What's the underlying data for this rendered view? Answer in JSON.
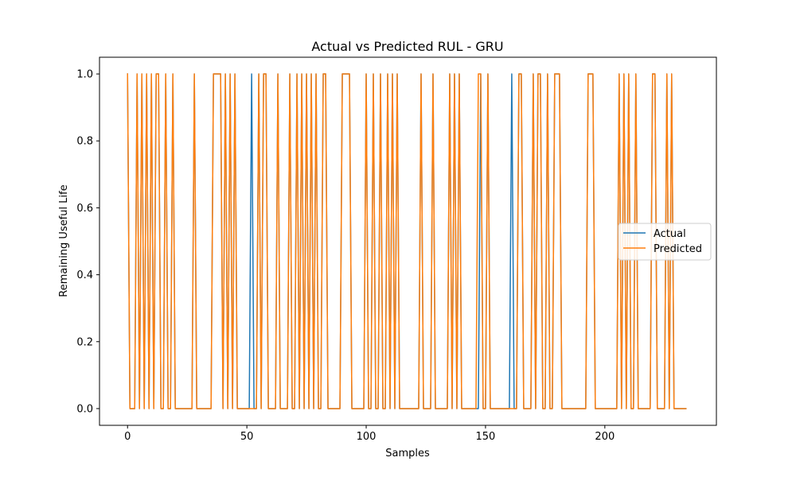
{
  "chart_data": {
    "type": "line",
    "title": "Actual vs Predicted RUL - GRU",
    "xlabel": "Samples",
    "ylabel": "Remaining Useful Life",
    "xlim": [
      -11.75,
      246.75
    ],
    "ylim": [
      -0.05,
      1.05
    ],
    "xticks": [
      0,
      50,
      100,
      150,
      200
    ],
    "yticks": [
      0.0,
      0.2,
      0.4,
      0.6,
      0.8,
      1.0
    ],
    "xtick_labels": [
      "0",
      "50",
      "100",
      "150",
      "200"
    ],
    "ytick_labels": [
      "0.0",
      "0.2",
      "0.4",
      "0.6",
      "0.8",
      "1.0"
    ],
    "grid": false,
    "legend": {
      "position": "center-right",
      "entries": [
        "Actual",
        "Predicted"
      ]
    },
    "series": [
      {
        "name": "Actual",
        "color": "#1f77b4",
        "x": [
          0,
          1,
          2,
          3,
          4,
          5,
          6,
          7,
          8,
          9,
          10,
          11,
          12,
          13,
          14,
          15,
          16,
          17,
          18,
          19,
          20,
          21,
          22,
          23,
          24,
          25,
          26,
          27,
          28,
          29,
          30,
          31,
          32,
          33,
          34,
          35,
          36,
          37,
          38,
          39,
          40,
          41,
          42,
          43,
          44,
          45,
          46,
          47,
          48,
          49,
          50,
          51,
          52,
          53,
          54,
          55,
          56,
          57,
          58,
          59,
          60,
          61,
          62,
          63,
          64,
          65,
          66,
          67,
          68,
          69,
          70,
          71,
          72,
          73,
          74,
          75,
          76,
          77,
          78,
          79,
          80,
          81,
          82,
          83,
          84,
          85,
          86,
          87,
          88,
          89,
          90,
          91,
          92,
          93,
          94,
          95,
          96,
          97,
          98,
          99,
          100,
          101,
          102,
          103,
          104,
          105,
          106,
          107,
          108,
          109,
          110,
          111,
          112,
          113,
          114,
          115,
          116,
          117,
          118,
          119,
          120,
          121,
          122,
          123,
          124,
          125,
          126,
          127,
          128,
          129,
          130,
          131,
          132,
          133,
          134,
          135,
          136,
          137,
          138,
          139,
          140,
          141,
          142,
          143,
          144,
          145,
          146,
          147,
          148,
          149,
          150,
          151,
          152,
          153,
          154,
          155,
          156,
          157,
          158,
          159,
          160,
          161,
          162,
          163,
          164,
          165,
          166,
          167,
          168,
          169,
          170,
          171,
          172,
          173,
          174,
          175,
          176,
          177,
          178,
          179,
          180,
          181,
          182,
          183,
          184,
          185,
          186,
          187,
          188,
          189,
          190,
          191,
          192,
          193,
          194,
          195,
          196,
          197,
          198,
          199,
          200,
          201,
          202,
          203,
          204,
          205,
          206,
          207,
          208,
          209,
          210,
          211,
          212,
          213,
          214,
          215,
          216,
          217,
          218,
          219,
          220,
          221,
          222,
          223,
          224,
          225,
          226,
          227,
          228,
          229,
          230,
          231,
          232,
          233,
          234
        ],
        "values": [
          1,
          0,
          0,
          0,
          1,
          0,
          1,
          0,
          1,
          0,
          1,
          0,
          1,
          1,
          0,
          0,
          1,
          0,
          0,
          1,
          0,
          0,
          0,
          0,
          0,
          0,
          0,
          0,
          1,
          0,
          0,
          0,
          0,
          0,
          0,
          0,
          1,
          1,
          1,
          1,
          0,
          1,
          0,
          1,
          0,
          1,
          0,
          0,
          0,
          0,
          0,
          0,
          1,
          0,
          0,
          1,
          0,
          1,
          1,
          0,
          0,
          0,
          0,
          1,
          0,
          0,
          0,
          0,
          1,
          0,
          0,
          1,
          0,
          1,
          0,
          1,
          0,
          1,
          0,
          1,
          0,
          0,
          1,
          1,
          0,
          0,
          0,
          0,
          0,
          0,
          1,
          1,
          1,
          1,
          0,
          0,
          0,
          0,
          0,
          0,
          1,
          0,
          0,
          1,
          0,
          0,
          1,
          0,
          0,
          1,
          0,
          1,
          0,
          1,
          0,
          0,
          0,
          0,
          0,
          0,
          0,
          0,
          0,
          1,
          0,
          0,
          0,
          0,
          1,
          0,
          0,
          0,
          0,
          0,
          0,
          1,
          0,
          1,
          0,
          1,
          0,
          0,
          0,
          0,
          0,
          0,
          0,
          0,
          1,
          0,
          0,
          1,
          0,
          0,
          0,
          0,
          0,
          0,
          0,
          0,
          0,
          1,
          0,
          0,
          1,
          1,
          0,
          0,
          0,
          0,
          1,
          0,
          1,
          1,
          0,
          0,
          1,
          0,
          0,
          1,
          1,
          1,
          0,
          0,
          0,
          0,
          0,
          0,
          0,
          0,
          0,
          0,
          0,
          1,
          1,
          1,
          0,
          0,
          0,
          0,
          0,
          0,
          0,
          0,
          0,
          0,
          1,
          0,
          1,
          0,
          1,
          0,
          0,
          1,
          0,
          0,
          0,
          0,
          0,
          0,
          1,
          1,
          0,
          0,
          0,
          0,
          1,
          0,
          1,
          0,
          0,
          0,
          0,
          0,
          0
        ]
      },
      {
        "name": "Predicted",
        "color": "#ff7f0e",
        "x": [
          0,
          1,
          2,
          3,
          4,
          5,
          6,
          7,
          8,
          9,
          10,
          11,
          12,
          13,
          14,
          15,
          16,
          17,
          18,
          19,
          20,
          21,
          22,
          23,
          24,
          25,
          26,
          27,
          28,
          29,
          30,
          31,
          32,
          33,
          34,
          35,
          36,
          37,
          38,
          39,
          40,
          41,
          42,
          43,
          44,
          45,
          46,
          47,
          48,
          49,
          50,
          51,
          52,
          53,
          54,
          55,
          56,
          57,
          58,
          59,
          60,
          61,
          62,
          63,
          64,
          65,
          66,
          67,
          68,
          69,
          70,
          71,
          72,
          73,
          74,
          75,
          76,
          77,
          78,
          79,
          80,
          81,
          82,
          83,
          84,
          85,
          86,
          87,
          88,
          89,
          90,
          91,
          92,
          93,
          94,
          95,
          96,
          97,
          98,
          99,
          100,
          101,
          102,
          103,
          104,
          105,
          106,
          107,
          108,
          109,
          110,
          111,
          112,
          113,
          114,
          115,
          116,
          117,
          118,
          119,
          120,
          121,
          122,
          123,
          124,
          125,
          126,
          127,
          128,
          129,
          130,
          131,
          132,
          133,
          134,
          135,
          136,
          137,
          138,
          139,
          140,
          141,
          142,
          143,
          144,
          145,
          146,
          147,
          148,
          149,
          150,
          151,
          152,
          153,
          154,
          155,
          156,
          157,
          158,
          159,
          160,
          161,
          162,
          163,
          164,
          165,
          166,
          167,
          168,
          169,
          170,
          171,
          172,
          173,
          174,
          175,
          176,
          177,
          178,
          179,
          180,
          181,
          182,
          183,
          184,
          185,
          186,
          187,
          188,
          189,
          190,
          191,
          192,
          193,
          194,
          195,
          196,
          197,
          198,
          199,
          200,
          201,
          202,
          203,
          204,
          205,
          206,
          207,
          208,
          209,
          210,
          211,
          212,
          213,
          214,
          215,
          216,
          217,
          218,
          219,
          220,
          221,
          222,
          223,
          224,
          225,
          226,
          227,
          228,
          229,
          230,
          231,
          232,
          233,
          234
        ],
        "values": [
          1,
          0,
          0,
          0,
          1,
          0,
          1,
          0,
          1,
          0,
          1,
          0,
          1,
          1,
          0,
          0,
          1,
          0,
          0,
          1,
          0,
          0,
          0,
          0,
          0,
          0,
          0,
          0,
          1,
          0,
          0,
          0,
          0,
          0,
          0,
          0,
          1,
          1,
          1,
          1,
          0,
          1,
          0,
          1,
          0,
          1,
          0,
          0,
          0,
          0,
          0,
          0,
          0,
          0,
          0,
          1,
          0,
          1,
          1,
          0,
          0,
          0,
          0,
          1,
          0,
          0,
          0,
          0,
          1,
          0,
          0,
          1,
          0,
          1,
          0,
          1,
          0,
          1,
          0,
          1,
          0,
          0,
          1,
          1,
          0,
          0,
          0,
          0,
          0,
          0,
          1,
          1,
          1,
          1,
          0,
          0,
          0,
          0,
          0,
          0,
          1,
          0,
          0,
          1,
          0,
          0,
          1,
          0,
          0,
          1,
          0,
          1,
          0,
          1,
          0,
          0,
          0,
          0,
          0,
          0,
          0,
          0,
          0,
          1,
          0,
          0,
          0,
          0,
          1,
          0,
          0,
          0,
          0,
          0,
          0,
          1,
          0,
          1,
          0,
          1,
          0,
          0,
          0,
          0,
          0,
          0,
          0,
          1,
          1,
          0,
          0,
          1,
          0,
          0,
          0,
          0,
          0,
          0,
          0,
          0,
          0,
          0,
          0,
          0,
          1,
          1,
          0,
          0,
          0,
          0,
          1,
          0,
          1,
          1,
          0,
          0,
          1,
          0,
          0,
          1,
          1,
          1,
          0,
          0,
          0,
          0,
          0,
          0,
          0,
          0,
          0,
          0,
          0,
          1,
          1,
          1,
          0,
          0,
          0,
          0,
          0,
          0,
          0,
          0,
          0,
          0,
          1,
          0,
          1,
          0,
          1,
          0,
          0,
          1,
          0,
          0,
          0,
          0,
          0,
          0,
          1,
          1,
          0,
          0,
          0,
          0,
          1,
          0,
          1,
          0,
          0,
          0,
          0,
          0,
          0
        ]
      }
    ]
  }
}
